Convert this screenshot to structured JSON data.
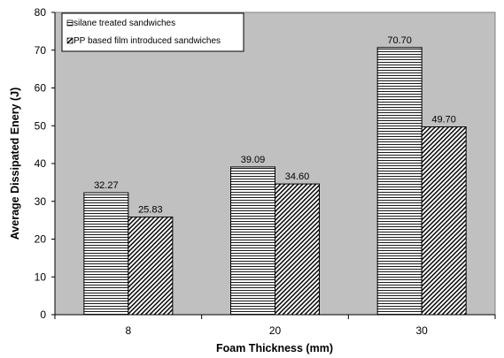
{
  "chart_data": {
    "type": "bar",
    "xlabel": "Foam Thickness (mm)",
    "ylabel": "Average Dissipated Enery (J)",
    "categories": [
      "8",
      "20",
      "30"
    ],
    "ylim": [
      0,
      80
    ],
    "yticks": [
      0,
      10,
      20,
      30,
      40,
      50,
      60,
      70,
      80
    ],
    "grid": false,
    "plot_background": "#c0c0c0",
    "legend_position": "top-left",
    "series": [
      {
        "name": "silane treated sandwiches",
        "values": [
          32.27,
          39.09,
          70.7
        ],
        "value_labels": [
          "32.27",
          "39.09",
          "70.70"
        ],
        "pattern": "horizontal-lines"
      },
      {
        "name": "PP based film introduced sandwiches",
        "values": [
          25.83,
          34.6,
          49.7
        ],
        "value_labels": [
          "25.83",
          "34.60",
          "49.70"
        ],
        "pattern": "diagonal-lines"
      }
    ]
  }
}
